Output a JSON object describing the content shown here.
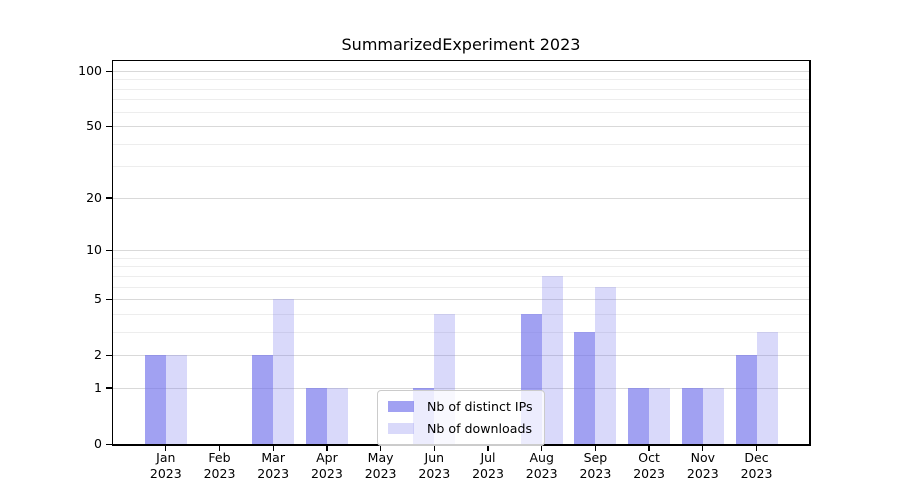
{
  "chart_data": {
    "type": "bar",
    "title": "SummarizedExperiment 2023",
    "categories": [
      "Jan",
      "Feb",
      "Mar",
      "Apr",
      "May",
      "Jun",
      "Jul",
      "Aug",
      "Sep",
      "Oct",
      "Nov",
      "Dec"
    ],
    "category_year": "2023",
    "series": [
      {
        "name": "Nb of distinct IPs",
        "values": [
          2,
          0,
          2,
          1,
          0,
          1,
          0,
          4,
          3,
          1,
          1,
          2
        ]
      },
      {
        "name": "Nb of downloads",
        "values": [
          2,
          0,
          5,
          1,
          0,
          4,
          0,
          7,
          6,
          1,
          1,
          3
        ]
      }
    ],
    "y_axis": {
      "scale": "log1p",
      "tick_values": [
        0,
        1,
        2,
        5,
        10,
        20,
        50,
        100
      ],
      "minor_gridlines": [
        3,
        4,
        6,
        7,
        8,
        9,
        30,
        40,
        60,
        70,
        80,
        90
      ],
      "range_min": 0,
      "range_max": 100,
      "grid": "on"
    },
    "legend": {
      "position": "lower center",
      "entries": [
        "Nb of distinct IPs",
        "Nb of downloads"
      ]
    },
    "colors": {
      "bar_base": "#6e6eeb",
      "alpha_distinct_ips": 0.65,
      "alpha_downloads": 0.26,
      "grid_major": "rgba(0,0,0,0.15)",
      "grid_minor": "rgba(0,0,0,0.07)",
      "axis": "#000000",
      "background": "#ffffff"
    }
  }
}
